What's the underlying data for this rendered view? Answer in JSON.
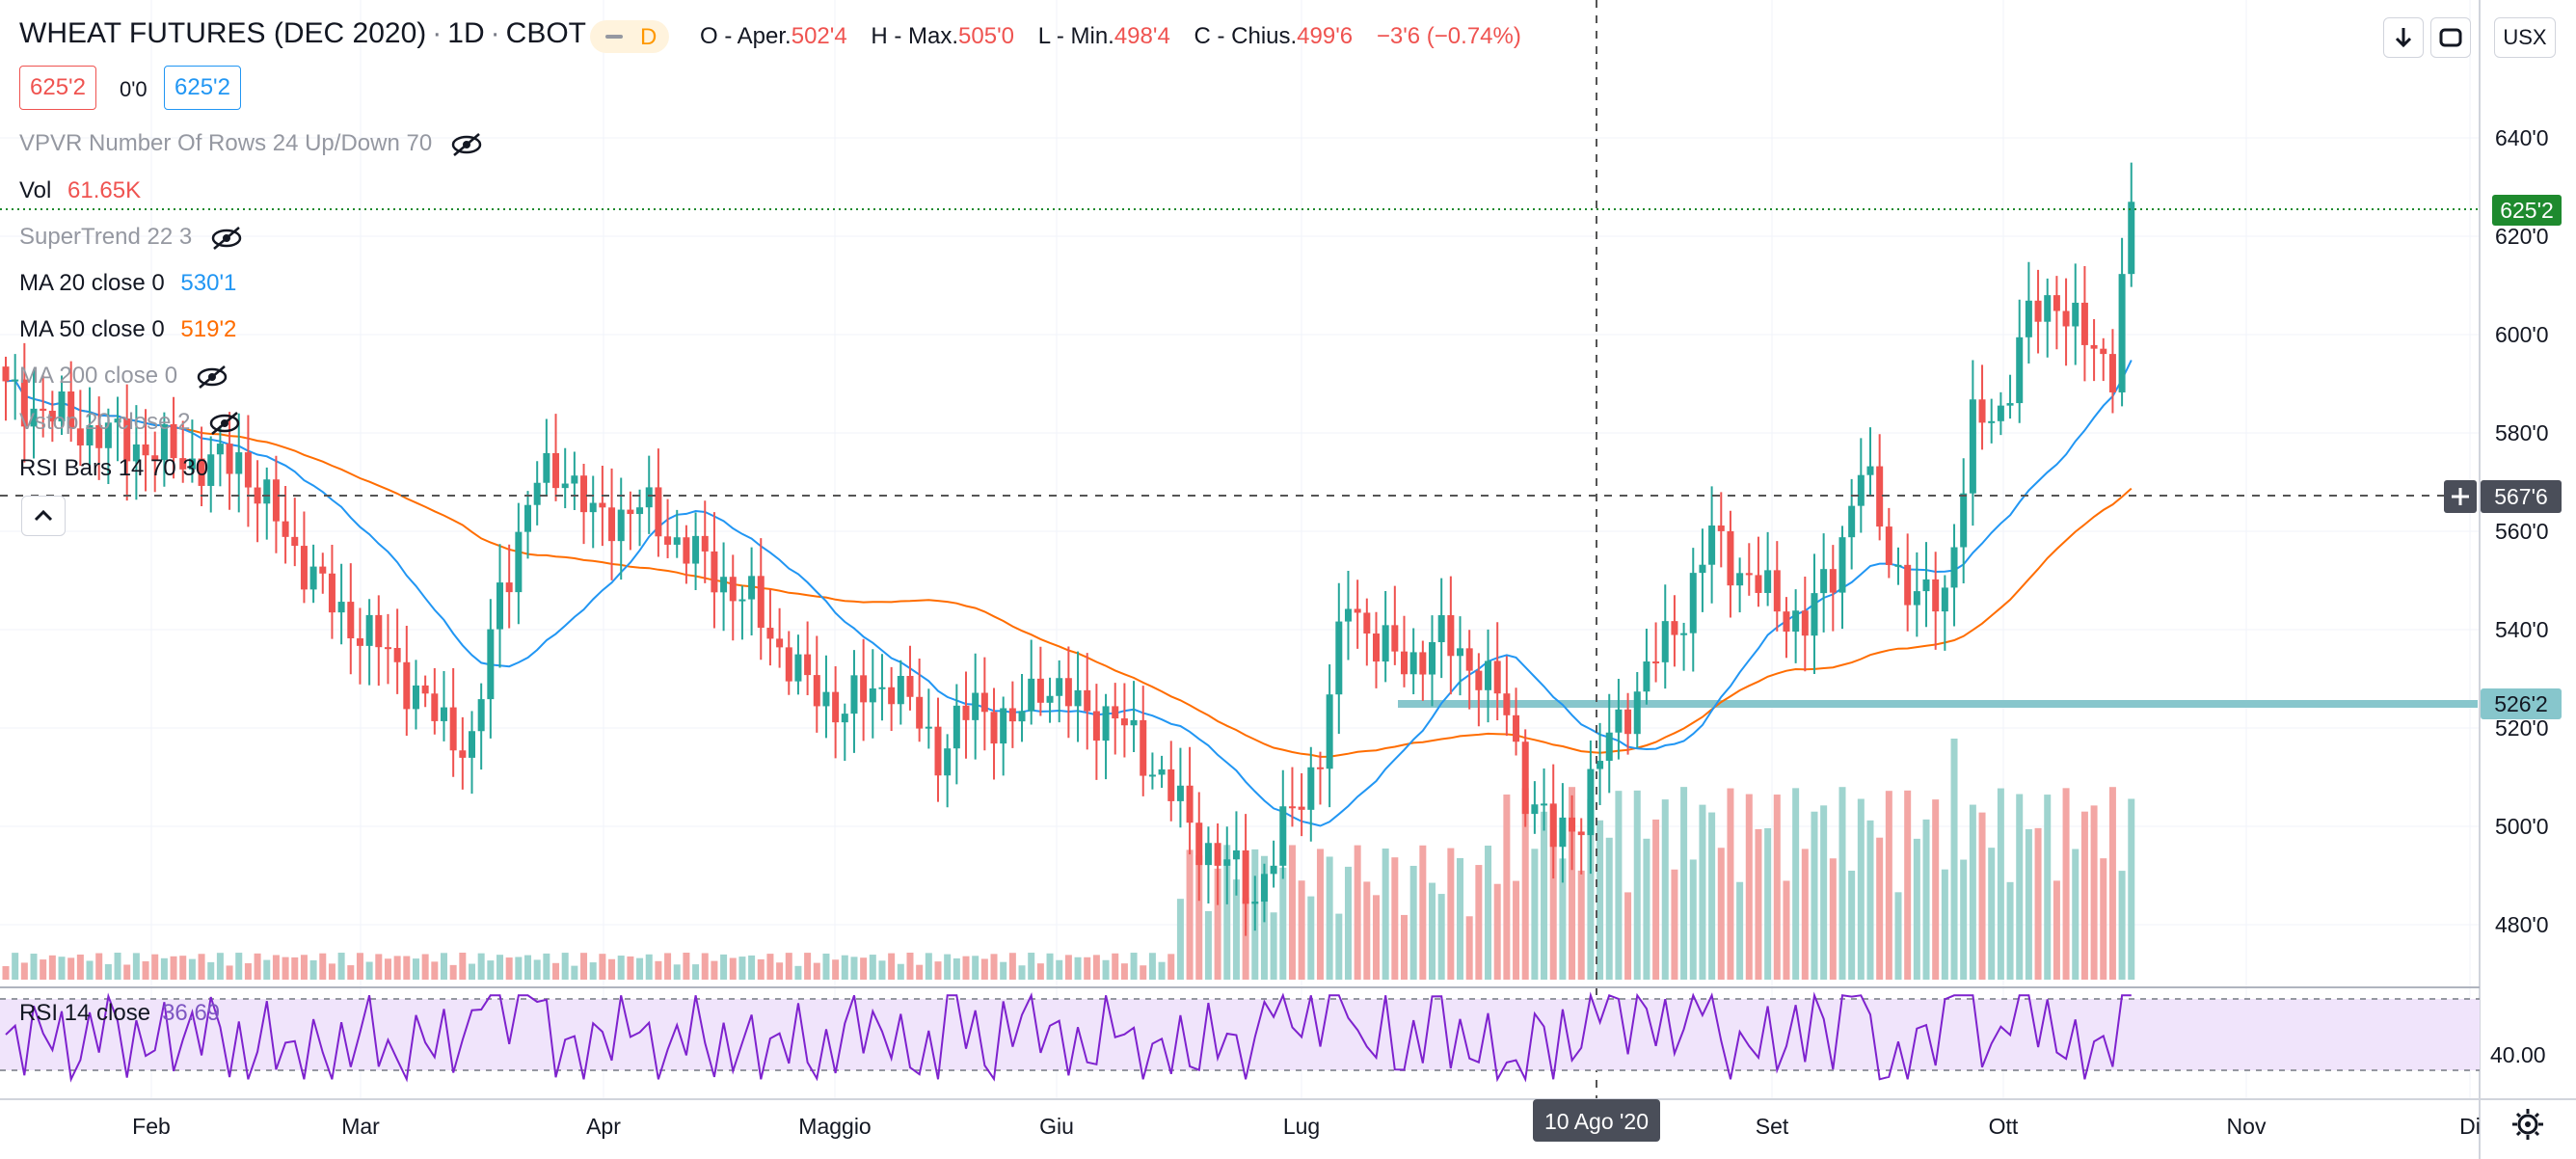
{
  "header": {
    "symbol": "WHEAT FUTURES (DEC 2020)",
    "interval": "1D",
    "exchange": "CBOT",
    "interval_badge": "D",
    "ohlc": {
      "o_label": "O - Aper.",
      "o_value": "502'4",
      "h_label": "H - Max.",
      "h_value": "505'0",
      "l_label": "L - Min.",
      "l_value": "498'4",
      "c_label": "C - Chius.",
      "c_value": "499'6",
      "change": "−3'6 (−0.74%)"
    }
  },
  "price_boxes": {
    "bid": "625'2",
    "spread": "0'0",
    "ask": "625'2"
  },
  "indicators": {
    "vpvr": "VPVR Number Of Rows 24 Up/Down 70",
    "vol_label": "Vol",
    "vol_value": "61.65K",
    "supertrend": "SuperTrend 22 3",
    "ma20_label": "MA 20 close 0",
    "ma20_value": "530'1",
    "ma50_label": "MA 50 close 0",
    "ma50_value": "519'2",
    "ma200_label": "MA 200 close 0",
    "vstop": "Vstop 20 close 2",
    "rsibars": "RSI Bars 14 70 30"
  },
  "rsi_pane": {
    "label": "RSI 14 close",
    "value": "36.69",
    "tick": "40.00"
  },
  "toolbar": {
    "currency": "USX"
  },
  "crosshair": {
    "date_label": "10 Ago '20",
    "price_label": "567'6"
  },
  "colors": {
    "up": "#26a69a",
    "down": "#ef5350",
    "ma20": "#2196f3",
    "ma50": "#ff6d00",
    "rsi": "#7e22ce",
    "support": "#87c6cc",
    "last_price": "#1e8a2e"
  },
  "chart_data": {
    "type": "candlestick",
    "price_axis_ticks": [
      "640'0",
      "620'0",
      "600'0",
      "580'0",
      "560'0",
      "540'0",
      "520'0",
      "500'0",
      "480'0"
    ],
    "price_axis_values": [
      640,
      620,
      600,
      580,
      560,
      540,
      520,
      500,
      480
    ],
    "time_axis_ticks": [
      "Feb",
      "Mar",
      "Apr",
      "Maggio",
      "Giu",
      "Lug",
      "Set",
      "Ott",
      "Nov",
      "Di"
    ],
    "last_price": 625.25,
    "last_price_label": "625'2",
    "support_level": 526.25,
    "support_label": "526'2",
    "crosshair_price": 567.75,
    "ylim": [
      468,
      651
    ],
    "rsi_levels": [
      70,
      30
    ],
    "series_close_anchors": [
      [
        0,
        588
      ],
      [
        8,
        581
      ],
      [
        15,
        577
      ],
      [
        22,
        573
      ],
      [
        25,
        575
      ],
      [
        28,
        565
      ],
      [
        35,
        545
      ],
      [
        41,
        535
      ],
      [
        46,
        522
      ],
      [
        50,
        516
      ],
      [
        53,
        548
      ],
      [
        57,
        570
      ],
      [
        60,
        573
      ],
      [
        63,
        562
      ],
      [
        68,
        565
      ],
      [
        72,
        558
      ],
      [
        77,
        550
      ],
      [
        80,
        545
      ],
      [
        86,
        528
      ],
      [
        90,
        524
      ],
      [
        95,
        530
      ],
      [
        100,
        515
      ],
      [
        104,
        525
      ],
      [
        108,
        520
      ],
      [
        111,
        530
      ],
      [
        115,
        524
      ],
      [
        119,
        522
      ],
      [
        124,
        510
      ],
      [
        128,
        497
      ],
      [
        131,
        492
      ],
      [
        134,
        486
      ],
      [
        138,
        503
      ],
      [
        141,
        515
      ],
      [
        144,
        547
      ],
      [
        147,
        537
      ],
      [
        150,
        533
      ],
      [
        154,
        538
      ],
      [
        158,
        532
      ],
      [
        161,
        523
      ],
      [
        163,
        508
      ],
      [
        166,
        497
      ],
      [
        169,
        503
      ],
      [
        172,
        518
      ],
      [
        176,
        531
      ],
      [
        180,
        544
      ],
      [
        183,
        559
      ],
      [
        186,
        552
      ],
      [
        190,
        545
      ],
      [
        193,
        541
      ],
      [
        196,
        552
      ],
      [
        199,
        573
      ],
      [
        202,
        556
      ],
      [
        205,
        545
      ],
      [
        208,
        548
      ],
      [
        211,
        581
      ],
      [
        214,
        585
      ],
      [
        217,
        603
      ],
      [
        220,
        608
      ],
      [
        223,
        598
      ],
      [
        226,
        594
      ],
      [
        228,
        627
      ]
    ]
  }
}
